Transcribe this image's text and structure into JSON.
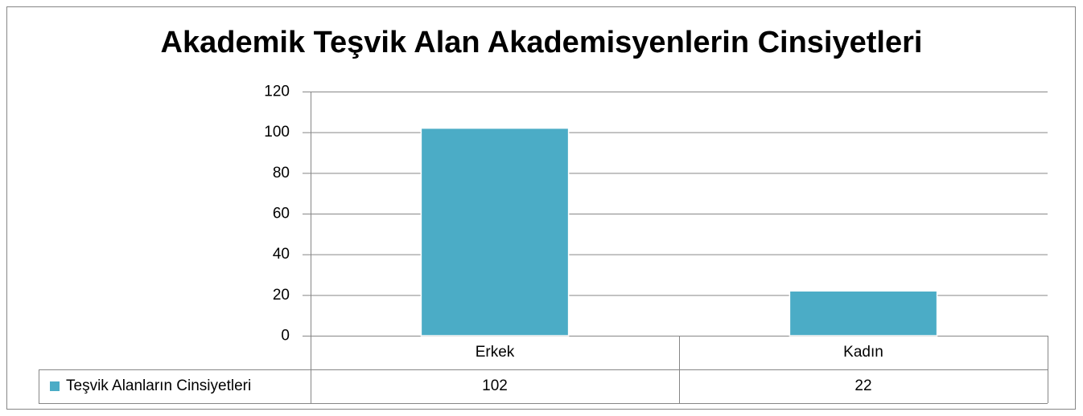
{
  "chart_data": {
    "type": "bar",
    "title": "Akademik Teşvik Alan Akademisyenlerin Cinsiyetleri",
    "categories": [
      "Erkek",
      "Kadın"
    ],
    "series": [
      {
        "name": "Teşvik Alanların Cinsiyetleri",
        "color": "#4bacc6",
        "values": [
          102,
          22
        ]
      }
    ],
    "ylim": [
      0,
      120
    ],
    "yticks": [
      0,
      20,
      40,
      60,
      80,
      100,
      120
    ],
    "grid": true,
    "data_table": true
  }
}
